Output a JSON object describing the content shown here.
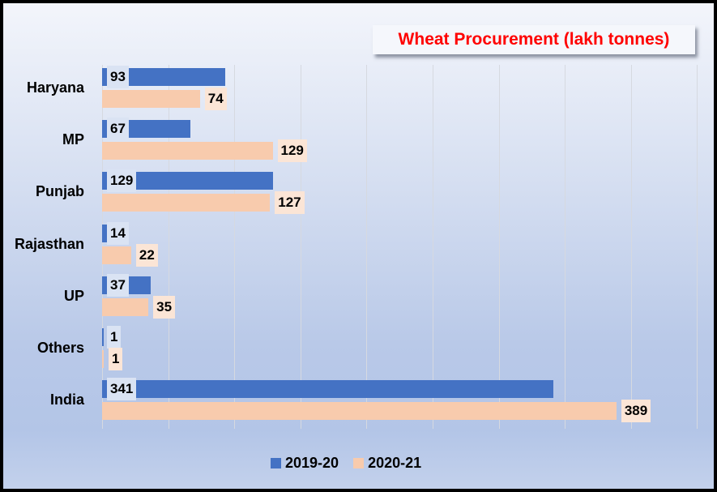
{
  "chart_data": {
    "type": "bar",
    "orientation": "horizontal",
    "title": "Wheat Procurement (lakh tonnes)",
    "categories": [
      "Haryana",
      "MP",
      "Punjab",
      "Rajasthan",
      "UP",
      "Others",
      "India"
    ],
    "series": [
      {
        "name": "2019-20",
        "color": "#4472c4",
        "values": [
          93,
          67,
          129,
          14,
          37,
          1,
          341
        ]
      },
      {
        "name": "2020-21",
        "color": "#f8cbad",
        "values": [
          74,
          129,
          127,
          22,
          35,
          1,
          389
        ]
      }
    ],
    "xlabel": "",
    "ylabel": "",
    "xlim": [
      0,
      450
    ],
    "grid": true,
    "gridline_step": 50,
    "legend_position": "bottom",
    "data_labels": true
  },
  "title": "Wheat Procurement (lakh tonnes)",
  "legend": [
    {
      "label": "2019-20",
      "color": "#4472c4"
    },
    {
      "label": "2020-21",
      "color": "#f8cbad"
    }
  ],
  "labels": {
    "s1": [
      "93",
      "67",
      "129",
      "14",
      "37",
      "1",
      "341"
    ],
    "s2": [
      "74",
      "129",
      "127",
      "22",
      "35",
      "1",
      "389"
    ]
  }
}
